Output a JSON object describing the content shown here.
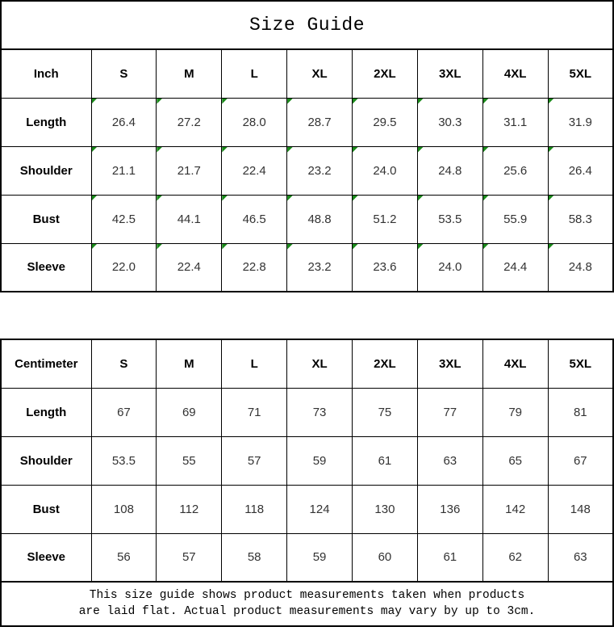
{
  "title": "Size Guide",
  "tables": [
    {
      "unit": "Inch",
      "sizes": [
        "S",
        "M",
        "L",
        "XL",
        "2XL",
        "3XL",
        "4XL",
        "5XL"
      ],
      "rows": [
        {
          "label": "Length",
          "values": [
            "26.4",
            "27.2",
            "28.0",
            "28.7",
            "29.5",
            "30.3",
            "31.1",
            "31.9"
          ]
        },
        {
          "label": "Shoulder",
          "values": [
            "21.1",
            "21.7",
            "22.4",
            "23.2",
            "24.0",
            "24.8",
            "25.6",
            "26.4"
          ]
        },
        {
          "label": "Bust",
          "values": [
            "42.5",
            "44.1",
            "46.5",
            "48.8",
            "51.2",
            "53.5",
            "55.9",
            "58.3"
          ]
        },
        {
          "label": "Sleeve",
          "values": [
            "22.0",
            "22.4",
            "22.8",
            "23.2",
            "23.6",
            "24.0",
            "24.4",
            "24.8"
          ]
        }
      ],
      "cell_corner_flags": true
    },
    {
      "unit": "Centimeter",
      "sizes": [
        "S",
        "M",
        "L",
        "XL",
        "2XL",
        "3XL",
        "4XL",
        "5XL"
      ],
      "rows": [
        {
          "label": "Length",
          "values": [
            "67",
            "69",
            "71",
            "73",
            "75",
            "77",
            "79",
            "81"
          ]
        },
        {
          "label": "Shoulder",
          "values": [
            "53.5",
            "55",
            "57",
            "59",
            "61",
            "63",
            "65",
            "67"
          ]
        },
        {
          "label": "Bust",
          "values": [
            "108",
            "112",
            "118",
            "124",
            "130",
            "136",
            "142",
            "148"
          ]
        },
        {
          "label": "Sleeve",
          "values": [
            "56",
            "57",
            "58",
            "59",
            "60",
            "61",
            "62",
            "63"
          ]
        }
      ],
      "cell_corner_flags": false
    }
  ],
  "footer": {
    "line1": "This size guide shows product measurements taken when products",
    "line2": "are laid flat. Actual product measurements may vary by up to 3cm."
  },
  "colors": {
    "flag_green": "#1a8a1a",
    "border": "#000000",
    "background": "#ffffff",
    "number_text": "#333333"
  }
}
